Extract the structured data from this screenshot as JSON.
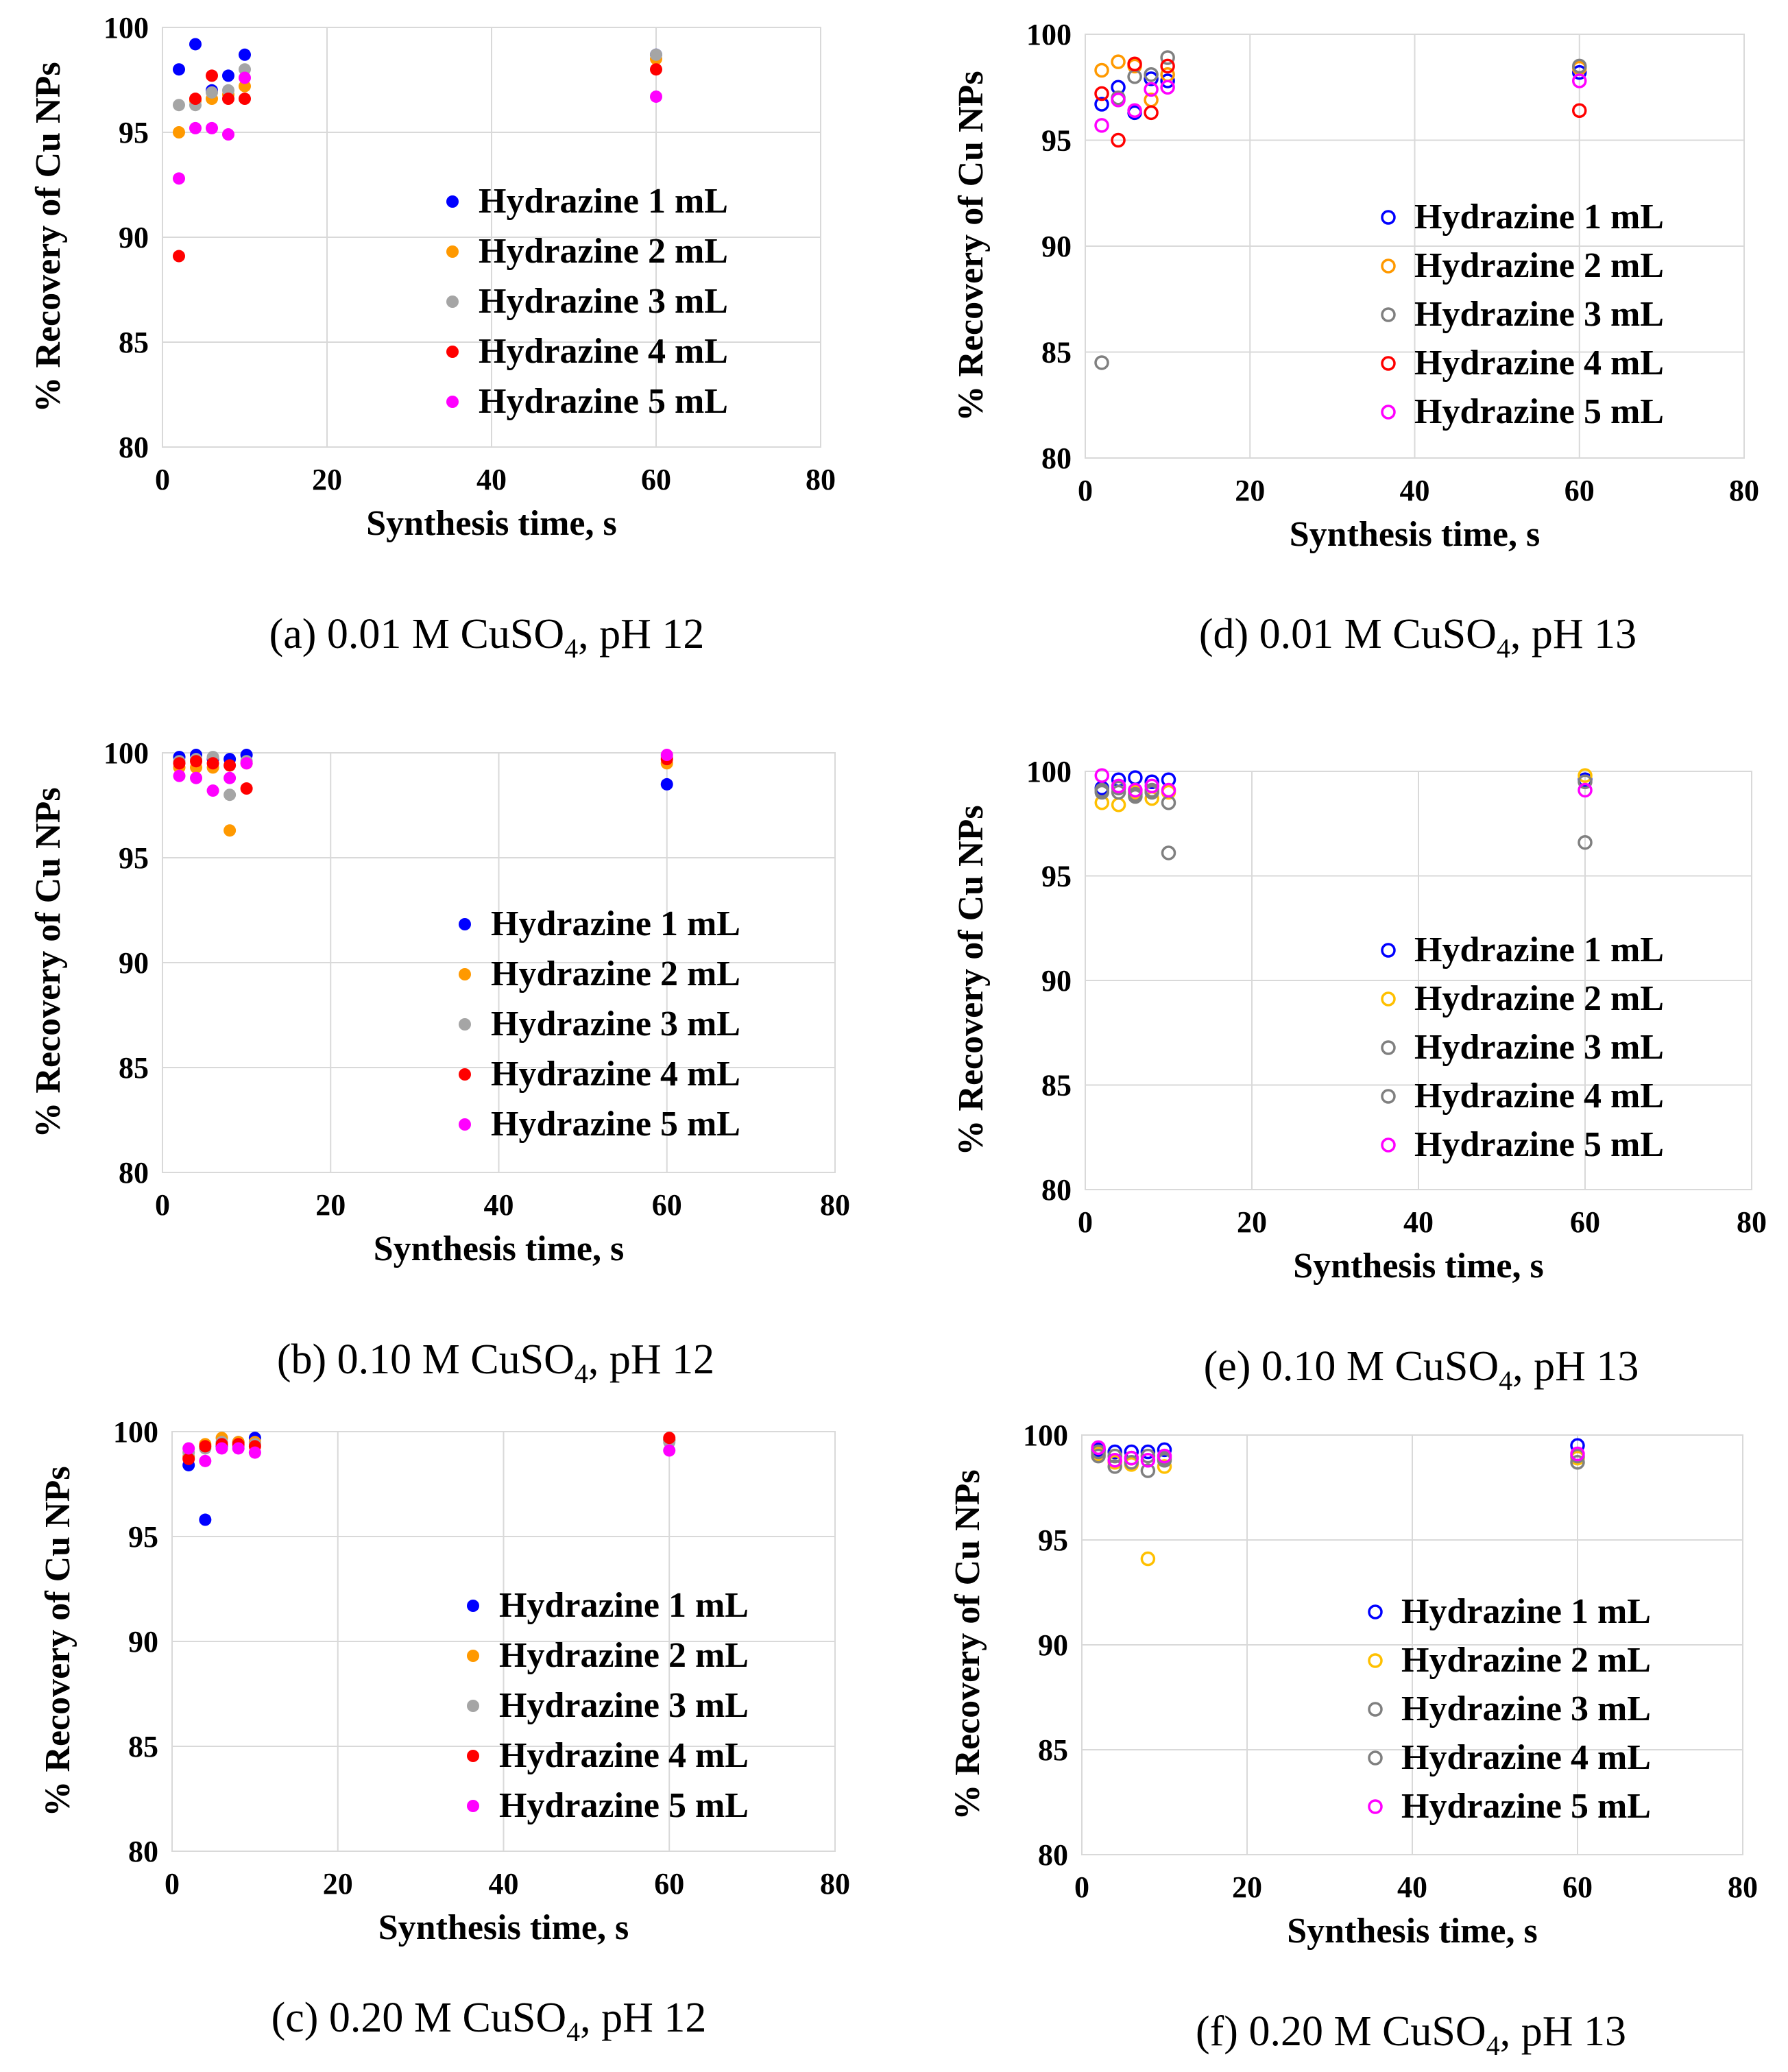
{
  "chart_data": [
    {
      "id": "a",
      "type": "scatter",
      "marker": "filled",
      "caption": {
        "prefix": "(a) 0.01 M CuSO",
        "sub": "4",
        "suffix": ", pH 12"
      },
      "xlabel": "Synthesis time, s",
      "ylabel": "% Recovery of Cu NPs",
      "xlim": [
        0,
        80
      ],
      "ylim": [
        80,
        100
      ],
      "xticks": [
        "0",
        "20",
        "40",
        "60",
        "80"
      ],
      "yticks": [
        "80",
        "85",
        "90",
        "95",
        "100"
      ],
      "series": [
        {
          "name": "Hydrazine 1 mL",
          "color": "#0000ff",
          "x": [
            2,
            4,
            6,
            8,
            10,
            60
          ],
          "y": [
            98.0,
            99.2,
            97.0,
            97.7,
            98.7,
            98.7
          ]
        },
        {
          "name": "Hydrazine 2 mL",
          "color": "#ff9900",
          "x": [
            2,
            4,
            6,
            8,
            10,
            60
          ],
          "y": [
            95.0,
            96.5,
            96.6,
            96.8,
            97.2,
            98.5
          ]
        },
        {
          "name": "Hydrazine 3 mL",
          "color": "#a5a5a5",
          "x": [
            2,
            4,
            6,
            8,
            10,
            60
          ],
          "y": [
            96.3,
            96.3,
            96.9,
            97.0,
            98.0,
            98.7
          ]
        },
        {
          "name": "Hydrazine 4 mL",
          "color": "#ff0000",
          "x": [
            2,
            4,
            6,
            8,
            10,
            60
          ],
          "y": [
            89.1,
            96.6,
            97.7,
            96.6,
            96.6,
            98.0
          ]
        },
        {
          "name": "Hydrazine 5 mL",
          "color": "#ff00ff",
          "x": [
            2,
            4,
            6,
            8,
            10,
            60
          ],
          "y": [
            92.8,
            95.2,
            95.2,
            94.9,
            97.6,
            96.7
          ]
        }
      ]
    },
    {
      "id": "d",
      "type": "scatter",
      "marker": "hollow",
      "caption": {
        "prefix": "(d) 0.01 M CuSO",
        "sub": "4",
        "suffix": ", pH 13"
      },
      "xlabel": "Synthesis time, s",
      "ylabel": "% Recovery of Cu NPs",
      "xlim": [
        0,
        80
      ],
      "ylim": [
        80,
        100
      ],
      "xticks": [
        "0",
        "20",
        "40",
        "60",
        "80"
      ],
      "yticks": [
        "80",
        "85",
        "90",
        "95",
        "100"
      ],
      "series": [
        {
          "name": "Hydrazine 1 mL",
          "color": "#0000ff",
          "x": [
            2,
            4,
            6,
            8,
            10,
            60
          ],
          "y": [
            96.7,
            97.5,
            96.3,
            97.9,
            97.8,
            98.2
          ]
        },
        {
          "name": "Hydrazine 2 mL",
          "color": "#ff9900",
          "x": [
            2,
            4,
            6,
            8,
            10,
            60
          ],
          "y": [
            98.3,
            98.7,
            98.5,
            96.9,
            98.1,
            98.4
          ]
        },
        {
          "name": "Hydrazine 3 mL",
          "color": "#808080",
          "x": [
            2,
            4,
            6,
            8,
            10,
            60
          ],
          "y": [
            84.5,
            97.0,
            98.0,
            98.1,
            98.9,
            98.5
          ]
        },
        {
          "name": "Hydrazine 4 mL",
          "color": "#ff0000",
          "x": [
            2,
            4,
            6,
            8,
            10,
            60
          ],
          "y": [
            97.2,
            95.0,
            98.6,
            96.3,
            98.5,
            96.4
          ]
        },
        {
          "name": "Hydrazine 5 mL",
          "color": "#ff00ff",
          "x": [
            2,
            4,
            6,
            8,
            10,
            60
          ],
          "y": [
            95.7,
            96.9,
            96.4,
            97.4,
            97.5,
            97.8
          ]
        }
      ]
    },
    {
      "id": "b",
      "type": "scatter",
      "marker": "filled",
      "caption": {
        "prefix": "(b) 0.10 M CuSO",
        "sub": "4",
        "suffix": ", pH 12"
      },
      "xlabel": "Synthesis time, s",
      "ylabel": "% Recovery of Cu NPs",
      "xlim": [
        0,
        80
      ],
      "ylim": [
        80,
        100
      ],
      "xticks": [
        "0",
        "20",
        "40",
        "60",
        "80"
      ],
      "yticks": [
        "80",
        "85",
        "90",
        "95",
        "100"
      ],
      "series": [
        {
          "name": "Hydrazine 1 mL",
          "color": "#0000ff",
          "x": [
            2,
            4,
            6,
            8,
            10,
            60
          ],
          "y": [
            99.8,
            99.9,
            99.7,
            99.7,
            99.9,
            98.5
          ]
        },
        {
          "name": "Hydrazine 2 mL",
          "color": "#ff9900",
          "x": [
            2,
            4,
            6,
            8,
            10,
            60
          ],
          "y": [
            99.3,
            99.3,
            99.3,
            96.3,
            99.5,
            99.5
          ]
        },
        {
          "name": "Hydrazine 3 mL",
          "color": "#a5a5a5",
          "x": [
            2,
            4,
            6,
            8,
            10,
            60
          ],
          "y": [
            99.6,
            99.7,
            99.8,
            98.0,
            99.6,
            99.8
          ]
        },
        {
          "name": "Hydrazine 4 mL",
          "color": "#ff0000",
          "x": [
            2,
            4,
            6,
            8,
            10,
            60
          ],
          "y": [
            99.5,
            99.6,
            99.5,
            99.4,
            98.3,
            99.7
          ]
        },
        {
          "name": "Hydrazine 5 mL",
          "color": "#ff00ff",
          "x": [
            2,
            4,
            6,
            8,
            10,
            60
          ],
          "y": [
            98.9,
            98.8,
            98.2,
            98.8,
            99.5,
            99.9
          ]
        }
      ]
    },
    {
      "id": "e",
      "type": "scatter",
      "marker": "hollow",
      "caption": {
        "prefix": "(e) 0.10 M CuSO",
        "sub": "4",
        "suffix": ", pH 13"
      },
      "xlabel": "Synthesis time, s",
      "ylabel": "% Recovery of Cu NPs",
      "xlim": [
        0,
        80
      ],
      "ylim": [
        80,
        100
      ],
      "xticks": [
        "0",
        "20",
        "40",
        "60",
        "80"
      ],
      "yticks": [
        "80",
        "85",
        "90",
        "95",
        "100"
      ],
      "series": [
        {
          "name": "Hydrazine 1 mL",
          "color": "#0000ff",
          "x": [
            2,
            4,
            6,
            8,
            10,
            60
          ],
          "y": [
            99.2,
            99.6,
            99.7,
            99.5,
            99.6,
            99.6
          ]
        },
        {
          "name": "Hydrazine 2 mL",
          "color": "#ffc000",
          "x": [
            2,
            4,
            6,
            8,
            10,
            60
          ],
          "y": [
            98.5,
            98.4,
            99.0,
            98.7,
            99.0,
            99.8
          ]
        },
        {
          "name": "Hydrazine 3 mL",
          "color": "#808080",
          "x": [
            2,
            4,
            6,
            8,
            10,
            60
          ],
          "y": [
            99.0,
            99.2,
            98.8,
            99.1,
            96.1,
            96.6
          ]
        },
        {
          "name": "Hydrazine 4 mL",
          "color": "#808080",
          "x": [
            2,
            4,
            6,
            8,
            10,
            60
          ],
          "y": [
            99.1,
            99.0,
            98.9,
            99.0,
            98.5,
            99.5
          ]
        },
        {
          "name": "Hydrazine 5 mL",
          "color": "#ff00ff",
          "x": [
            2,
            4,
            6,
            8,
            10,
            60
          ],
          "y": [
            99.8,
            99.3,
            99.1,
            99.3,
            99.1,
            99.1
          ]
        }
      ]
    },
    {
      "id": "c",
      "type": "scatter",
      "marker": "filled",
      "caption": {
        "prefix": "(c) 0.20 M CuSO",
        "sub": "4",
        "suffix": ", pH 12"
      },
      "xlabel": "Synthesis time, s",
      "ylabel": "% Recovery of Cu NPs",
      "xlim": [
        0,
        80
      ],
      "ylim": [
        80,
        100
      ],
      "xticks": [
        "0",
        "20",
        "40",
        "60",
        "80"
      ],
      "yticks": [
        "80",
        "85",
        "90",
        "95",
        "100"
      ],
      "series": [
        {
          "name": "Hydrazine 1 mL",
          "color": "#0000ff",
          "x": [
            2,
            4,
            6,
            8,
            10,
            60
          ],
          "y": [
            98.4,
            95.8,
            99.3,
            99.5,
            99.7,
            99.6
          ]
        },
        {
          "name": "Hydrazine 2 mL",
          "color": "#ff9900",
          "x": [
            2,
            4,
            6,
            8,
            10,
            60
          ],
          "y": [
            98.8,
            99.4,
            99.7,
            99.5,
            99.5,
            99.6
          ]
        },
        {
          "name": "Hydrazine 3 mL",
          "color": "#a5a5a5",
          "x": [
            2,
            4,
            6,
            8,
            10,
            60
          ],
          "y": [
            99.0,
            99.2,
            99.5,
            99.3,
            99.4,
            99.5
          ]
        },
        {
          "name": "Hydrazine 4 mL",
          "color": "#ff0000",
          "x": [
            2,
            4,
            6,
            8,
            10,
            60
          ],
          "y": [
            98.7,
            99.3,
            99.4,
            99.4,
            99.3,
            99.7
          ]
        },
        {
          "name": "Hydrazine 5 mL",
          "color": "#ff00ff",
          "x": [
            2,
            4,
            6,
            8,
            10,
            60
          ],
          "y": [
            99.2,
            98.6,
            99.2,
            99.2,
            99.0,
            99.1
          ]
        }
      ]
    },
    {
      "id": "f",
      "type": "scatter",
      "marker": "hollow",
      "caption": {
        "prefix": "(f) 0.20 M CuSO",
        "sub": "4",
        "suffix": ", pH 13"
      },
      "xlabel": "Synthesis time, s",
      "ylabel": "% Recovery of Cu NPs",
      "xlim": [
        0,
        80
      ],
      "ylim": [
        80,
        100
      ],
      "xticks": [
        "0",
        "20",
        "40",
        "60",
        "80"
      ],
      "yticks": [
        "80",
        "85",
        "90",
        "95",
        "100"
      ],
      "series": [
        {
          "name": "Hydrazine 1 mL",
          "color": "#0000ff",
          "x": [
            2,
            4,
            6,
            8,
            10,
            60
          ],
          "y": [
            99.3,
            99.2,
            99.2,
            99.2,
            99.3,
            99.5
          ]
        },
        {
          "name": "Hydrazine 2 mL",
          "color": "#ffc000",
          "x": [
            2,
            4,
            6,
            8,
            10,
            60
          ],
          "y": [
            99.1,
            98.7,
            98.6,
            94.1,
            98.5,
            98.9
          ]
        },
        {
          "name": "Hydrazine 3 mL",
          "color": "#808080",
          "x": [
            2,
            4,
            6,
            8,
            10,
            60
          ],
          "y": [
            99.0,
            98.5,
            98.7,
            98.3,
            98.8,
            98.7
          ]
        },
        {
          "name": "Hydrazine 4 mL",
          "color": "#808080",
          "x": [
            2,
            4,
            6,
            8,
            10,
            60
          ],
          "y": [
            99.2,
            99.0,
            98.9,
            99.0,
            98.9,
            99.0
          ]
        },
        {
          "name": "Hydrazine 5 mL",
          "color": "#ff00ff",
          "x": [
            2,
            4,
            6,
            8,
            10,
            60
          ],
          "y": [
            99.4,
            98.8,
            98.9,
            98.8,
            99.0,
            99.1
          ]
        }
      ]
    }
  ]
}
